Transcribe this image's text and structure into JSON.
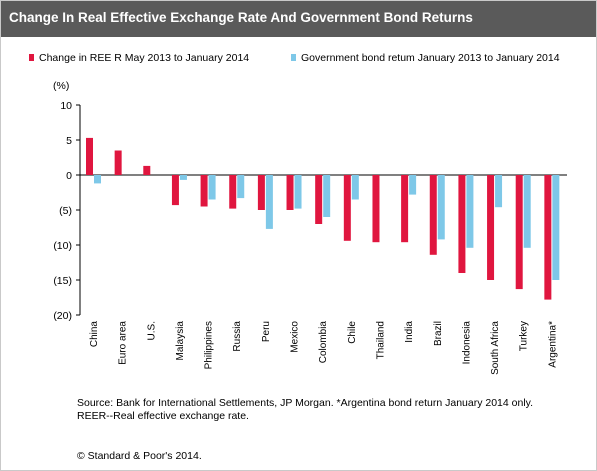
{
  "title": "Change In Real Effective Exchange Rate And Government Bond Returns",
  "source_note": "Source: Bank for International Settlements, JP Morgan. *Argentina bond return January 2014 only. REER--Real  effective exchange rate.",
  "copyright": "© Standard & Poor's 2014.",
  "colors": {
    "title_bar": "#5a5a5a",
    "series_reer": "#e0163f",
    "series_bond": "#7ec8e8"
  },
  "chart_data": {
    "type": "bar",
    "y_unit_label": "(%)",
    "ylim": [
      -20,
      10
    ],
    "y_ticks": [
      10,
      5,
      0,
      -5,
      -10,
      -15,
      -20
    ],
    "y_tick_labels": [
      "10",
      "5",
      "0",
      "(5)",
      "(10)",
      "(15)",
      "(20)"
    ],
    "grid": false,
    "legend_position": "top",
    "categories": [
      "China",
      "Euro area",
      "U.S.",
      "Malaysia",
      "Philippines",
      "Russia",
      "Peru",
      "Mexico",
      "Colombia",
      "Chile",
      "Thailand",
      "India",
      "Brazil",
      "Indonesia",
      "South Africa",
      "Turkey",
      "Argentina*"
    ],
    "series": [
      {
        "name": "Change in REE R May 2013 to January 2014",
        "color": "#e0163f",
        "values": [
          5.3,
          3.5,
          1.3,
          -4.3,
          -4.5,
          -4.8,
          -5.0,
          -5.0,
          -7.0,
          -9.4,
          -9.6,
          -9.6,
          -11.4,
          -14.0,
          -15.0,
          -16.3,
          -17.8
        ]
      },
      {
        "name": "Government bond retum January 2013 to January 2014",
        "color": "#7ec8e8",
        "values": [
          -1.2,
          null,
          null,
          -0.7,
          -3.5,
          -3.3,
          -7.7,
          -4.8,
          -6.0,
          -3.5,
          null,
          -2.8,
          -9.2,
          -10.4,
          -4.6,
          -10.4,
          -15.0
        ]
      }
    ]
  }
}
